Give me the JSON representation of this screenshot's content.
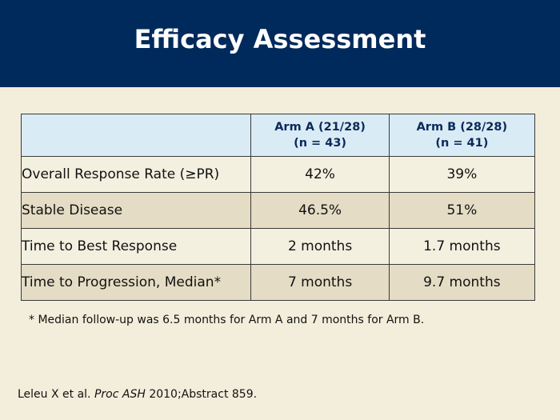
{
  "slide": {
    "title": "Efficacy Assessment"
  },
  "table": {
    "columns": [
      {
        "line1": "",
        "line2": ""
      },
      {
        "line1": "Arm A (21/28)",
        "line2": "(n = 43)"
      },
      {
        "line1": "Arm B (28/28)",
        "line2": "(n = 41)"
      }
    ],
    "rows": [
      {
        "label": "Overall Response Rate (≥PR)",
        "arm_a": "42%",
        "arm_b": "39%"
      },
      {
        "label": "Stable Disease",
        "arm_a": "46.5%",
        "arm_b": "51%"
      },
      {
        "label": "Time to Best Response",
        "arm_a": "2 months",
        "arm_b": "1.7 months"
      },
      {
        "label": "Time to Progression, Median*",
        "arm_a": "7 months",
        "arm_b": "9.7 months"
      }
    ]
  },
  "footnote": "* Median follow-up was 6.5 months for Arm A  and 7 months for Arm B.",
  "citation": {
    "authors": "Leleu X et al. ",
    "journal": "Proc ASH",
    "details": " 2010;Abstract 859."
  },
  "colors": {
    "header_bg": "#002a5c",
    "body_bg": "#f3eedb",
    "table_head_bg": "#d9ebf4",
    "row_light": "#f4f0e0",
    "row_dark": "#e4dcc4"
  }
}
